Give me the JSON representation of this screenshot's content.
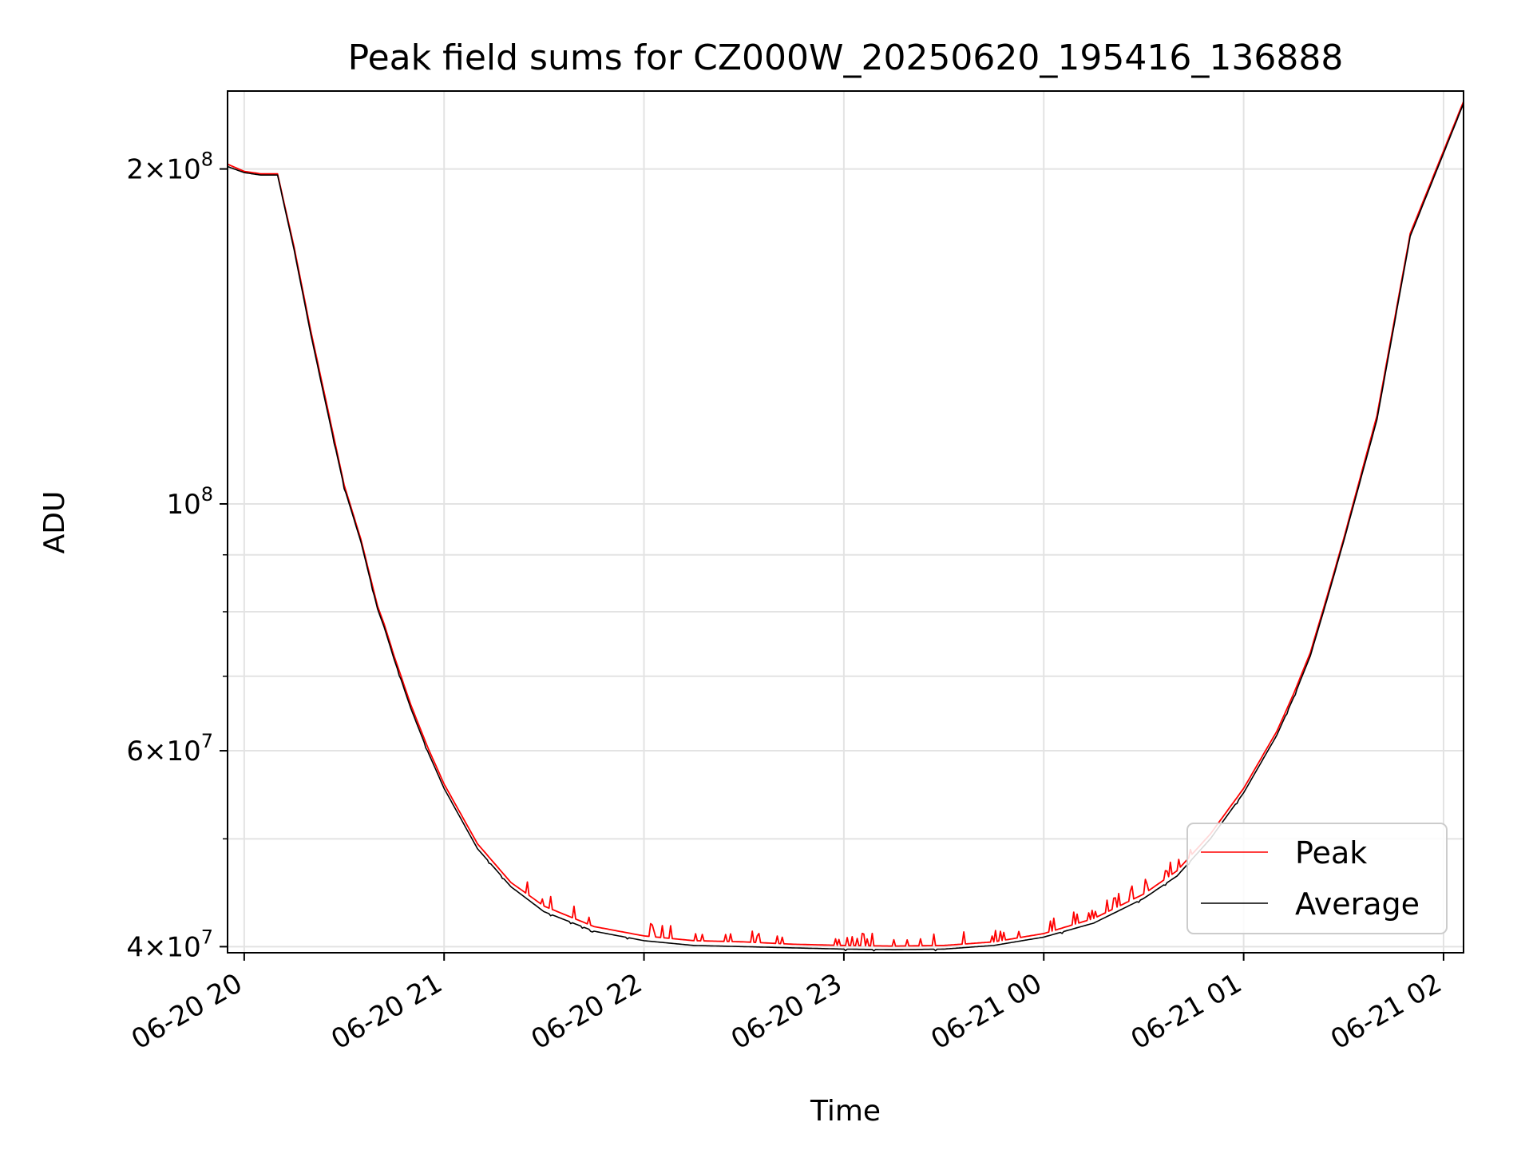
{
  "chart_data": {
    "type": "line",
    "title": "Peak field sums for CZ000W_20250620_195416_136888",
    "xlabel": "Time",
    "ylabel": "ADU",
    "y_scale": "log",
    "xlim": [
      "2025-06-20T19:55",
      "2025-06-21T02:06"
    ],
    "ylim": [
      39500000,
      235000000
    ],
    "x_ticks": [
      "06-20 20",
      "06-20 21",
      "06-20 22",
      "06-20 23",
      "06-21 00",
      "06-21 01",
      "06-21 02"
    ],
    "y_ticks": [
      {
        "value": 40000000,
        "label_mantissa": "4",
        "label_exp": "7"
      },
      {
        "value": 60000000,
        "label_mantissa": "6",
        "label_exp": "7"
      },
      {
        "value": 100000000,
        "label_mantissa": "",
        "label_exp": "8"
      },
      {
        "value": 200000000,
        "label_mantissa": "2",
        "label_exp": "8"
      }
    ],
    "grid": true,
    "legend_position": "lower right",
    "series": [
      {
        "name": "Peak",
        "color": "#ff0000",
        "note_spikes": "frequent upward spikes of ~1-3% above the average between 21:20 and 00:45",
        "x": [
          "2025-06-20T19:55",
          "2025-06-20T20:00",
          "2025-06-20T20:05",
          "2025-06-20T20:10",
          "2025-06-20T20:15",
          "2025-06-20T20:20",
          "2025-06-20T20:25",
          "2025-06-20T20:30",
          "2025-06-20T20:35",
          "2025-06-20T20:40",
          "2025-06-20T20:42",
          "2025-06-20T20:45",
          "2025-06-20T20:50",
          "2025-06-20T20:55",
          "2025-06-20T21:00",
          "2025-06-20T21:10",
          "2025-06-20T21:20",
          "2025-06-20T21:30",
          "2025-06-20T21:45",
          "2025-06-20T22:00",
          "2025-06-20T22:15",
          "2025-06-20T22:30",
          "2025-06-20T22:45",
          "2025-06-20T23:00",
          "2025-06-20T23:15",
          "2025-06-20T23:30",
          "2025-06-20T23:45",
          "2025-06-21T00:00",
          "2025-06-21T00:15",
          "2025-06-21T00:30",
          "2025-06-21T00:40",
          "2025-06-21T00:50",
          "2025-06-21T01:00",
          "2025-06-21T01:10",
          "2025-06-21T01:15",
          "2025-06-21T01:20",
          "2025-06-21T01:25",
          "2025-06-21T01:30",
          "2025-06-21T01:40",
          "2025-06-21T01:50",
          "2025-06-21T02:06"
        ],
        "y": [
          202000000,
          199000000,
          198000000,
          198000000,
          170000000,
          143000000,
          122000000,
          104000000,
          93000000,
          81000000,
          78000000,
          73000000,
          66000000,
          60500000,
          56000000,
          49500000,
          45700000,
          43500000,
          41700000,
          40900000,
          40500000,
          40400000,
          40200000,
          40100000,
          40050000,
          40100000,
          40400000,
          41100000,
          42400000,
          44600000,
          46800000,
          50500000,
          55500000,
          62500000,
          67500000,
          73500000,
          82500000,
          93000000,
          120000000,
          175000000,
          230000000
        ]
      },
      {
        "name": "Average",
        "color": "#000000",
        "x": [
          "2025-06-20T19:55",
          "2025-06-20T20:00",
          "2025-06-20T20:05",
          "2025-06-20T20:10",
          "2025-06-20T20:15",
          "2025-06-20T20:20",
          "2025-06-20T20:25",
          "2025-06-20T20:30",
          "2025-06-20T20:35",
          "2025-06-20T20:40",
          "2025-06-20T20:42",
          "2025-06-20T20:45",
          "2025-06-20T20:50",
          "2025-06-20T20:55",
          "2025-06-20T21:00",
          "2025-06-20T21:10",
          "2025-06-20T21:20",
          "2025-06-20T21:30",
          "2025-06-20T21:45",
          "2025-06-20T22:00",
          "2025-06-20T22:15",
          "2025-06-20T22:30",
          "2025-06-20T22:45",
          "2025-06-20T23:00",
          "2025-06-20T23:15",
          "2025-06-20T23:30",
          "2025-06-20T23:45",
          "2025-06-21T00:00",
          "2025-06-21T00:15",
          "2025-06-21T00:30",
          "2025-06-21T00:40",
          "2025-06-21T00:50",
          "2025-06-21T01:00",
          "2025-06-21T01:10",
          "2025-06-21T01:15",
          "2025-06-21T01:20",
          "2025-06-21T01:25",
          "2025-06-21T01:30",
          "2025-06-21T01:40",
          "2025-06-21T01:50",
          "2025-06-21T02:06"
        ],
        "y": [
          201000000,
          198500000,
          197500000,
          197500000,
          169000000,
          142000000,
          121000000,
          103500000,
          92500000,
          80500000,
          77500000,
          72500000,
          65500000,
          60000000,
          55500000,
          49000000,
          45300000,
          43000000,
          41300000,
          40500000,
          40100000,
          40000000,
          39900000,
          39800000,
          39750000,
          39800000,
          40100000,
          40800000,
          42000000,
          44200000,
          46300000,
          50000000,
          55000000,
          62000000,
          67000000,
          73000000,
          82000000,
          92500000,
          119000000,
          174000000,
          229000000
        ]
      }
    ]
  }
}
